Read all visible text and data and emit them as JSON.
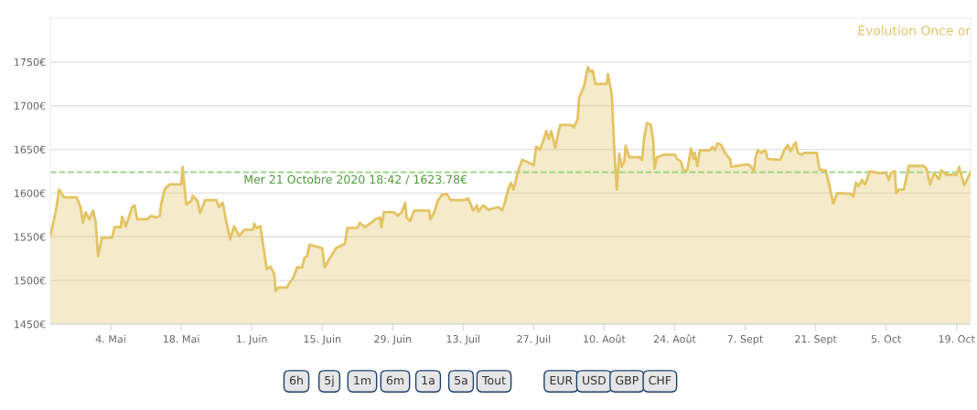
{
  "chart_data": {
    "type": "area",
    "title": "Évolution Once or",
    "x": [
      "2020-04-22T00:00",
      "2020-04-23T00:00",
      "2020-04-23T06:00",
      "2020-04-23T18:00",
      "2020-04-24T18:00",
      "2020-04-27T06:00",
      "2020-04-28T00:00",
      "2020-04-28T12:00",
      "2020-04-29T00:00",
      "2020-04-29T18:00",
      "2020-04-30T12:00",
      "2020-05-01T00:00",
      "2020-05-01T12:00",
      "2020-05-02T06:00",
      "2020-05-04T06:00",
      "2020-05-04T18:00",
      "2020-05-06T00:00",
      "2020-05-06T06:00",
      "2020-05-07T00:00",
      "2020-05-08T06:00",
      "2020-05-08T18:00",
      "2020-05-09T06:00",
      "2020-05-11T06:00",
      "2020-05-12T00:00",
      "2020-05-13T00:00",
      "2020-05-13T18:00",
      "2020-05-14T00:00",
      "2020-05-14T18:00",
      "2020-05-15T18:00",
      "2020-05-18T00:00",
      "2020-05-18T06:00",
      "2020-05-19T00:00",
      "2020-05-20T00:00",
      "2020-05-20T06:00",
      "2020-05-21T06:00",
      "2020-05-21T18:00",
      "2020-05-22T18:00",
      "2020-05-25T00:00",
      "2020-05-25T12:00",
      "2020-05-26T06:00",
      "2020-05-27T00:00",
      "2020-05-27T18:00",
      "2020-05-28T12:00",
      "2020-05-29T12:00",
      "2020-05-30T12:00",
      "2020-06-01T06:00",
      "2020-06-01T12:00",
      "2020-06-02T00:00",
      "2020-06-02T18:00",
      "2020-06-03T06:00",
      "2020-06-04T00:00",
      "2020-06-04T18:00",
      "2020-06-05T12:00",
      "2020-06-05T18:00",
      "2020-06-06T06:00",
      "2020-06-08T00:00",
      "2020-06-08T12:00",
      "2020-06-09T06:00",
      "2020-06-10T00:00",
      "2020-06-11T00:00",
      "2020-06-11T12:00",
      "2020-06-12T00:00",
      "2020-06-12T12:00",
      "2020-06-15T00:00",
      "2020-06-15T12:00",
      "2020-06-16T06:00",
      "2020-06-17T18:00",
      "2020-06-19T12:00",
      "2020-06-20T00:00",
      "2020-06-22T00:00",
      "2020-06-22T12:00",
      "2020-06-23T12:00",
      "2020-06-24T18:00",
      "2020-06-25T12:00",
      "2020-06-26T12:00",
      "2020-06-26T18:00",
      "2020-06-27T06:00",
      "2020-06-29T06:00",
      "2020-06-30T00:00",
      "2020-06-30T18:00",
      "2020-07-01T12:00",
      "2020-07-01T18:00",
      "2020-07-02T12:00",
      "2020-07-03T06:00",
      "2020-07-06T06:00",
      "2020-07-06T12:00",
      "2020-07-07T06:00",
      "2020-07-08T00:00",
      "2020-07-08T18:00",
      "2020-07-09T18:00",
      "2020-07-10T12:00",
      "2020-07-13T06:00",
      "2020-07-14T00:00",
      "2020-07-15T00:00",
      "2020-07-15T18:00",
      "2020-07-16T00:00",
      "2020-07-17T00:00",
      "2020-07-18T00:00",
      "2020-07-20T00:00",
      "2020-07-20T18:00",
      "2020-07-21T06:00",
      "2020-07-22T00:00",
      "2020-07-22T12:00",
      "2020-07-23T00:00",
      "2020-07-24T00:00",
      "2020-07-24T18:00",
      "2020-07-27T00:00",
      "2020-07-27T12:00",
      "2020-07-28T06:00",
      "2020-07-29T00:00",
      "2020-07-29T12:00",
      "2020-07-30T00:00",
      "2020-07-30T12:00",
      "2020-07-31T06:00",
      "2020-08-01T06:00",
      "2020-08-03T12:00",
      "2020-08-04T00:00",
      "2020-08-04T18:00",
      "2020-08-05T00:00",
      "2020-08-06T00:00",
      "2020-08-06T18:00",
      "2020-08-07T06:00",
      "2020-08-07T18:00",
      "2020-08-08T06:00",
      "2020-08-10T12:00",
      "2020-08-10T18:00",
      "2020-08-11T12:00",
      "2020-08-12T00:00",
      "2020-08-12T12:00",
      "2020-08-13T00:00",
      "2020-08-13T12:00",
      "2020-08-14T00:00",
      "2020-08-14T06:00",
      "2020-08-15T00:00",
      "2020-08-17T00:00",
      "2020-08-17T12:00",
      "2020-08-18T00:00",
      "2020-08-18T12:00",
      "2020-08-19T06:00",
      "2020-08-19T18:00",
      "2020-08-20T00:00",
      "2020-08-20T12:00",
      "2020-08-22T00:00",
      "2020-08-24T00:00",
      "2020-08-24T12:00",
      "2020-08-25T06:00",
      "2020-08-25T18:00",
      "2020-08-26T12:00",
      "2020-08-27T06:00",
      "2020-08-27T18:00",
      "2020-08-28T00:00",
      "2020-08-28T12:00",
      "2020-08-29T00:00",
      "2020-08-31T00:00",
      "2020-08-31T12:00",
      "2020-09-01T00:00",
      "2020-09-01T12:00",
      "2020-09-02T06:00",
      "2020-09-03T00:00",
      "2020-09-04T00:00",
      "2020-09-04T06:00",
      "2020-09-07T12:00",
      "2020-09-08T00:00",
      "2020-09-08T18:00",
      "2020-09-09T00:00",
      "2020-09-09T12:00",
      "2020-09-10T06:00",
      "2020-09-11T00:00",
      "2020-09-11T12:00",
      "2020-09-14T00:00",
      "2020-09-14T18:00",
      "2020-09-15T12:00",
      "2020-09-16T00:00",
      "2020-09-17T00:00",
      "2020-09-17T12:00",
      "2020-09-18T06:00",
      "2020-09-18T18:00",
      "2020-09-21T06:00",
      "2020-09-21T18:00",
      "2020-09-23T00:00",
      "2020-09-23T12:00",
      "2020-09-24T12:00",
      "2020-09-25T06:00",
      "2020-09-28T00:00",
      "2020-09-28T12:00",
      "2020-09-29T00:00",
      "2020-09-29T12:00",
      "2020-09-30T06:00",
      "2020-09-30T18:00",
      "2020-10-01T00:00",
      "2020-10-01T18:00",
      "2020-10-03T06:00",
      "2020-10-05T00:00",
      "2020-10-05T12:00",
      "2020-10-06T00:00",
      "2020-10-06T18:00",
      "2020-10-07T00:00",
      "2020-10-07T12:00",
      "2020-10-08T12:00",
      "2020-10-09T00:00",
      "2020-10-09T12:00",
      "2020-10-12T12:00",
      "2020-10-13T00:00",
      "2020-10-13T18:00",
      "2020-10-14T12:00",
      "2020-10-15T12:00",
      "2020-10-16T00:00",
      "2020-10-17T00:00",
      "2020-10-19T00:00",
      "2020-10-19T12:00",
      "2020-10-20T00:00",
      "2020-10-20T12:00",
      "2020-10-21T18:42"
    ],
    "series": [
      {
        "color": "#e3c464",
        "values": [
          1551,
          1577,
          1585,
          1604,
          1595,
          1595,
          1584,
          1566,
          1578,
          1570,
          1580,
          1567,
          1528,
          1549,
          1549,
          1561,
          1561,
          1573,
          1562,
          1584,
          1586,
          1570,
          1570,
          1574,
          1572,
          1574,
          1587,
          1605,
          1610,
          1610,
          1630,
          1587,
          1591,
          1597,
          1591,
          1577,
          1592,
          1592,
          1584,
          1589,
          1566,
          1547,
          1562,
          1551,
          1558,
          1558,
          1565,
          1560,
          1562,
          1541,
          1513,
          1516,
          1507,
          1488,
          1492,
          1492,
          1497,
          1503,
          1515,
          1515,
          1526,
          1528,
          1541,
          1537,
          1515,
          1523,
          1537,
          1542,
          1560,
          1560,
          1566,
          1561,
          1566,
          1570,
          1572,
          1561,
          1578,
          1578,
          1574,
          1578,
          1589,
          1572,
          1568,
          1580,
          1580,
          1570,
          1578,
          1592,
          1598,
          1599,
          1592,
          1592,
          1594,
          1580,
          1586,
          1579,
          1586,
          1581,
          1584,
          1580,
          1589,
          1605,
          1612,
          1604,
          1627,
          1638,
          1632,
          1653,
          1650,
          1661,
          1671,
          1662,
          1671,
          1652,
          1678,
          1678,
          1675,
          1685,
          1709,
          1722,
          1744,
          1739,
          1740,
          1725,
          1725,
          1736,
          1713,
          1651,
          1604,
          1645,
          1630,
          1636,
          1654,
          1641,
          1641,
          1638,
          1665,
          1680,
          1678,
          1661,
          1628,
          1641,
          1644,
          1644,
          1639,
          1636,
          1626,
          1626,
          1651,
          1639,
          1646,
          1631,
          1649,
          1649,
          1653,
          1649,
          1657,
          1655,
          1646,
          1639,
          1630,
          1633,
          1631,
          1625,
          1639,
          1649,
          1646,
          1649,
          1639,
          1638,
          1649,
          1655,
          1648,
          1658,
          1646,
          1644,
          1646,
          1646,
          1627,
          1626,
          1615,
          1588,
          1600,
          1599,
          1596,
          1612,
          1608,
          1615,
          1610,
          1612,
          1625,
          1623,
          1623,
          1615,
          1623,
          1625,
          1600,
          1604,
          1604,
          1617,
          1631,
          1631,
          1628,
          1610,
          1623,
          1616,
          1626,
          1621,
          1621,
          1630,
          1619,
          1609,
          1624
        ]
      }
    ],
    "xlim": [
      "2020-04-22T00:00",
      "2020-10-21T18:42"
    ],
    "xticks": [
      {
        "value": "2020-05-04",
        "label": "4. Mai"
      },
      {
        "value": "2020-05-18",
        "label": "18. Mai"
      },
      {
        "value": "2020-06-01",
        "label": "1. Juin"
      },
      {
        "value": "2020-06-15",
        "label": "15. Juin"
      },
      {
        "value": "2020-06-29",
        "label": "29. Juin"
      },
      {
        "value": "2020-07-13",
        "label": "13. Juil"
      },
      {
        "value": "2020-07-27",
        "label": "27. Juil"
      },
      {
        "value": "2020-08-10",
        "label": "10. Août"
      },
      {
        "value": "2020-08-24",
        "label": "24. Août"
      },
      {
        "value": "2020-09-07",
        "label": "7. Sept"
      },
      {
        "value": "2020-09-21",
        "label": "21. Sept"
      },
      {
        "value": "2020-10-05",
        "label": "5. Oct"
      },
      {
        "value": "2020-10-19",
        "label": "19. Oct"
      }
    ],
    "ylim": [
      1450,
      1800
    ],
    "yticks": [
      {
        "value": 1450,
        "label": "1450€"
      },
      {
        "value": 1500,
        "label": "1500€"
      },
      {
        "value": 1550,
        "label": "1550€"
      },
      {
        "value": 1600,
        "label": "1600€"
      },
      {
        "value": 1650,
        "label": "1650€"
      },
      {
        "value": 1700,
        "label": "1700€"
      },
      {
        "value": 1750,
        "label": "1750€"
      }
    ],
    "ref_lines": [
      {
        "axis": "y",
        "value": 1623.78,
        "label": "Mer 21 Octobre 2020 18:42 / 1623.78€",
        "color": "#8fd47a",
        "line_style": "dashed"
      }
    ],
    "annotations": [
      "6h",
      "5j",
      "1m",
      "6m",
      "1a",
      "5a",
      "Tout",
      "EUR",
      "USD",
      "GBP",
      "CHF"
    ],
    "grid": "y",
    "legend": false,
    "marker": "none",
    "line_style": "solid"
  }
}
